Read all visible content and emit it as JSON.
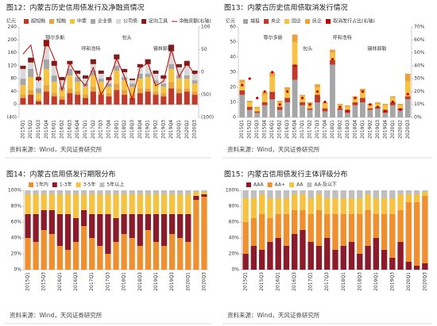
{
  "chart_data": [
    {
      "type": "bar",
      "title": "图12：内蒙古历史信用债发行及净融资情况",
      "source": "资料来源：Wind，天风证券研究所",
      "y_label": "亿元",
      "stacked": true,
      "grid": false,
      "legend": "top",
      "categories": [
        "2015Q1",
        "2015Q2",
        "2015Q3",
        "2015Q4",
        "2016Q1",
        "2016Q2",
        "2016Q3",
        "2016Q4",
        "2017Q1",
        "2017Q2",
        "2017Q3",
        "2017Q4",
        "2018Q1",
        "2018Q2",
        "2018Q3",
        "2018Q4",
        "2019Q1",
        "2019Q2",
        "2019Q3",
        "2019Q4",
        "2020Q1",
        "2020Q2",
        "2020Q3"
      ],
      "ylim": [
        -40,
        240
      ],
      "yticks": [
        {
          "value": -40,
          "label": "(40)"
        },
        0,
        40,
        80,
        120,
        160,
        200,
        240
      ],
      "y2lim": [
        -100,
        100
      ],
      "y2ticks": [
        {
          "value": -100,
          "label": "(100)"
        },
        {
          "value": -50,
          "label": "(50)"
        },
        0,
        50,
        100
      ],
      "annotations": [
        "鄂尔多斯",
        "呼和浩特",
        "包头",
        "锡林郭勒"
      ],
      "series": [
        {
          "name": "超短融",
          "color": "#c0392b",
          "values": [
            20,
            30,
            10,
            40,
            25,
            15,
            35,
            30,
            20,
            40,
            30,
            25,
            45,
            30,
            20,
            35,
            40,
            30,
            25,
            50,
            35,
            40,
            30
          ]
        },
        {
          "name": "短融",
          "color": "#e8a33d",
          "values": [
            10,
            15,
            5,
            20,
            10,
            10,
            15,
            10,
            10,
            15,
            10,
            10,
            20,
            15,
            10,
            15,
            10,
            10,
            10,
            20,
            15,
            10,
            10
          ]
        },
        {
          "name": "中票",
          "color": "#f5c242",
          "values": [
            30,
            40,
            20,
            50,
            35,
            20,
            40,
            30,
            25,
            35,
            30,
            20,
            40,
            30,
            25,
            30,
            35,
            25,
            20,
            40,
            30,
            30,
            25
          ]
        },
        {
          "name": "企业债",
          "color": "#a6a6a6",
          "values": [
            20,
            25,
            15,
            30,
            20,
            10,
            20,
            15,
            10,
            15,
            10,
            10,
            15,
            10,
            10,
            15,
            10,
            10,
            10,
            15,
            10,
            10,
            10
          ]
        },
        {
          "name": "公司债",
          "color": "#d9d9d9",
          "values": [
            30,
            20,
            25,
            40,
            30,
            20,
            15,
            10,
            15,
            20,
            15,
            10,
            20,
            15,
            10,
            20,
            30,
            20,
            15,
            40,
            25,
            30,
            20
          ]
        },
        {
          "name": "定向工具",
          "color": "#7f1d1d",
          "values": [
            10,
            15,
            10,
            20,
            15,
            10,
            10,
            10,
            10,
            15,
            10,
            10,
            15,
            10,
            5,
            10,
            15,
            10,
            10,
            20,
            10,
            15,
            10
          ]
        },
        {
          "name": "净融资额(右轴)",
          "color": "#c00000",
          "type": "line",
          "axis": "y2",
          "values": [
            40,
            60,
            -20,
            70,
            30,
            -40,
            20,
            -10,
            -30,
            10,
            -50,
            -20,
            30,
            -10,
            -60,
            10,
            20,
            -30,
            -20,
            50,
            -10,
            20,
            -5
          ]
        }
      ]
    },
    {
      "type": "bar",
      "title": "图13：内蒙古历史信用债取消发行情况",
      "source": "资料来源：Wind，天风证券研究所",
      "y_label": "亿元",
      "stacked": true,
      "grid": false,
      "legend": "top",
      "categories": [
        "2015Q1",
        "2015Q2",
        "2015Q3",
        "2015Q4",
        "2016Q1",
        "2016Q2",
        "2016Q3",
        "2016Q4",
        "2017Q1",
        "2017Q2",
        "2017Q3",
        "2017Q4",
        "2018Q1",
        "2018Q2",
        "2018Q3",
        "2018Q4",
        "2019Q1",
        "2019Q2",
        "2019Q3",
        "2019Q4",
        "2020Q1",
        "2020Q2",
        "2020Q3"
      ],
      "ylim": [
        0,
        60
      ],
      "yticks": [
        0,
        10,
        20,
        30,
        40,
        50,
        60
      ],
      "y2lim": [
        0,
        70
      ],
      "y2ticks": [
        {
          "value": 0,
          "label": "0%"
        },
        {
          "value": 10,
          "label": "10%"
        },
        {
          "value": 20,
          "label": "20%"
        },
        {
          "value": 30,
          "label": "30%"
        },
        {
          "value": 40,
          "label": "40%"
        },
        {
          "value": 50,
          "label": "50%"
        },
        {
          "value": 60,
          "label": "60%"
        },
        {
          "value": 70,
          "label": "70%"
        }
      ],
      "annotations": [
        "鄂尔多斯",
        "包头",
        "呼和浩特",
        "锡林郭勒"
      ],
      "series": [
        {
          "name": "城投",
          "color": "#a6a6a6",
          "values": [
            15,
            5,
            3,
            8,
            12,
            5,
            10,
            25,
            8,
            5,
            10,
            4,
            35,
            5,
            3,
            8,
            10,
            5,
            6,
            3,
            8,
            5,
            12
          ]
        },
        {
          "name": "央企",
          "color": "#c0392b",
          "values": [
            3,
            2,
            1,
            2,
            5,
            2,
            3,
            10,
            2,
            1,
            5,
            2,
            3,
            1,
            2,
            2,
            3,
            1,
            1,
            2,
            2,
            1,
            2
          ]
        },
        {
          "name": "国企",
          "color": "#f5c242",
          "values": [
            5,
            3,
            2,
            5,
            10,
            3,
            5,
            15,
            4,
            3,
            5,
            3,
            5,
            2,
            2,
            3,
            4,
            2,
            2,
            3,
            3,
            2,
            10
          ]
        },
        {
          "name": "民企",
          "color": "#e8a33d",
          "values": [
            2,
            1,
            1,
            2,
            3,
            1,
            2,
            5,
            1,
            1,
            2,
            1,
            2,
            1,
            1,
            1,
            2,
            1,
            1,
            1,
            1,
            1,
            5
          ]
        },
        {
          "name": "取消发行占比(右轴)",
          "color": "#c00000",
          "type": "scatter",
          "axis": "y2",
          "values": [
            25,
            30,
            15,
            20,
            35,
            10,
            20,
            40,
            15,
            10,
            20,
            12,
            45,
            8,
            5,
            15,
            20,
            10,
            8,
            5,
            12,
            6,
            18
          ]
        }
      ]
    },
    {
      "type": "bar",
      "title": "图14：内蒙古信用债发行期限分布",
      "source": "资料来源：Wind，天风证券研究所",
      "stacked": true,
      "grid": false,
      "legend": "top",
      "categories": [
        "2015Q1",
        null,
        "2015Q3",
        null,
        "2016Q1",
        null,
        "2016Q3",
        null,
        "2017Q1",
        null,
        "2017Q3",
        null,
        "2018Q1",
        null,
        "2018Q3",
        null,
        "2019Q1",
        null,
        "2019Q3",
        null,
        "2020Q1",
        null,
        "2020Q3"
      ],
      "ylim": [
        0,
        100
      ],
      "yticks": [
        {
          "value": 0,
          "label": "0%"
        },
        {
          "value": 20,
          "label": "20%"
        },
        {
          "value": 40,
          "label": "40%"
        },
        {
          "value": 60,
          "label": "60%"
        },
        {
          "value": 80,
          "label": "80%"
        },
        {
          "value": 100,
          "label": "100%"
        }
      ],
      "series": [
        {
          "name": "1年内",
          "color": "#ef8f2f",
          "values": [
            40,
            35,
            50,
            45,
            30,
            25,
            35,
            55,
            40,
            30,
            20,
            35,
            45,
            40,
            30,
            50,
            35,
            30,
            45,
            40,
            35,
            88,
            92
          ]
        },
        {
          "name": "1-3年",
          "color": "#8b1a2b",
          "values": [
            30,
            35,
            25,
            30,
            40,
            45,
            30,
            20,
            30,
            40,
            50,
            30,
            25,
            30,
            40,
            20,
            35,
            40,
            25,
            30,
            35,
            5,
            3
          ]
        },
        {
          "name": "3-5年",
          "color": "#f5c242",
          "values": [
            25,
            25,
            20,
            20,
            25,
            25,
            30,
            20,
            25,
            25,
            25,
            30,
            25,
            25,
            25,
            25,
            25,
            25,
            25,
            25,
            25,
            5,
            3
          ]
        },
        {
          "name": "5年以上",
          "color": "#bfbfbf",
          "values": [
            5,
            5,
            5,
            5,
            5,
            5,
            5,
            5,
            5,
            5,
            5,
            5,
            5,
            5,
            5,
            5,
            5,
            5,
            5,
            5,
            5,
            2,
            2
          ]
        }
      ]
    },
    {
      "type": "bar",
      "title": "图15：内蒙古信用债发行主体评级分布",
      "source": "资料来源：Wind，天风证券研究所",
      "stacked": true,
      "grid": false,
      "legend": "top",
      "categories": [
        "2015Q1",
        null,
        "2015Q3",
        null,
        "2016Q1",
        null,
        "2016Q3",
        null,
        "2017Q1",
        null,
        "2017Q3",
        null,
        "2018Q1",
        null,
        "2018Q3",
        null,
        "2019Q1",
        null,
        "2019Q3",
        null,
        "2020Q1",
        null,
        "2020Q3"
      ],
      "ylim": [
        0,
        100
      ],
      "yticks": [
        {
          "value": 0,
          "label": "0%"
        },
        {
          "value": 20,
          "label": "20%"
        },
        {
          "value": 40,
          "label": "40%"
        },
        {
          "value": 60,
          "label": "60%"
        },
        {
          "value": 80,
          "label": "80%"
        },
        {
          "value": 100,
          "label": "100%"
        }
      ],
      "series": [
        {
          "name": "AAA",
          "color": "#8b1a2b",
          "values": [
            20,
            30,
            25,
            35,
            40,
            30,
            45,
            50,
            35,
            30,
            40,
            25,
            30,
            35,
            20,
            30,
            40,
            25,
            15,
            35,
            10,
            5,
            8
          ]
        },
        {
          "name": "AA+",
          "color": "#ef8f2f",
          "values": [
            40,
            35,
            45,
            30,
            30,
            40,
            30,
            25,
            35,
            45,
            30,
            45,
            40,
            35,
            50,
            45,
            30,
            45,
            55,
            40,
            75,
            80,
            85
          ]
        },
        {
          "name": "AA",
          "color": "#f5c242",
          "values": [
            30,
            25,
            25,
            25,
            20,
            20,
            20,
            20,
            20,
            20,
            20,
            20,
            20,
            20,
            20,
            20,
            20,
            20,
            20,
            20,
            10,
            10,
            5
          ]
        },
        {
          "name": "AA-及以下",
          "color": "#bfbfbf",
          "values": [
            10,
            10,
            5,
            10,
            10,
            10,
            5,
            5,
            10,
            5,
            10,
            10,
            10,
            10,
            10,
            5,
            10,
            10,
            10,
            5,
            5,
            5,
            2
          ]
        }
      ]
    }
  ]
}
